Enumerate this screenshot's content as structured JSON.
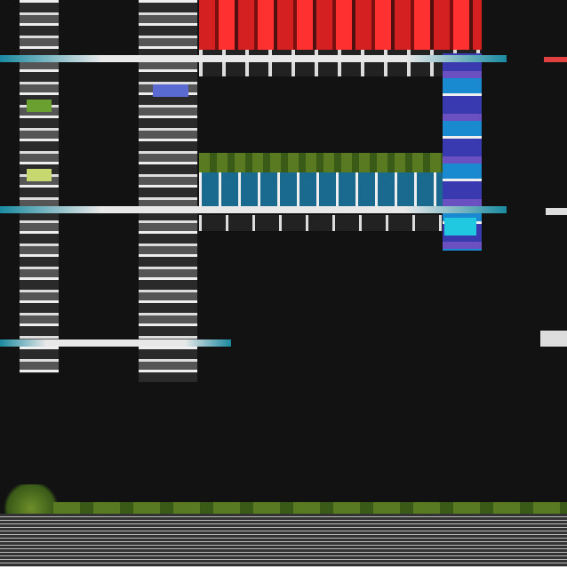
{
  "scene": {
    "colors": {
      "background": "#121212",
      "facade_red": "#d42020",
      "accent_cyan": "#1a8aa0",
      "structure_white": "#e8e8e8",
      "greenery": "#5a7a22"
    },
    "icons": []
  }
}
